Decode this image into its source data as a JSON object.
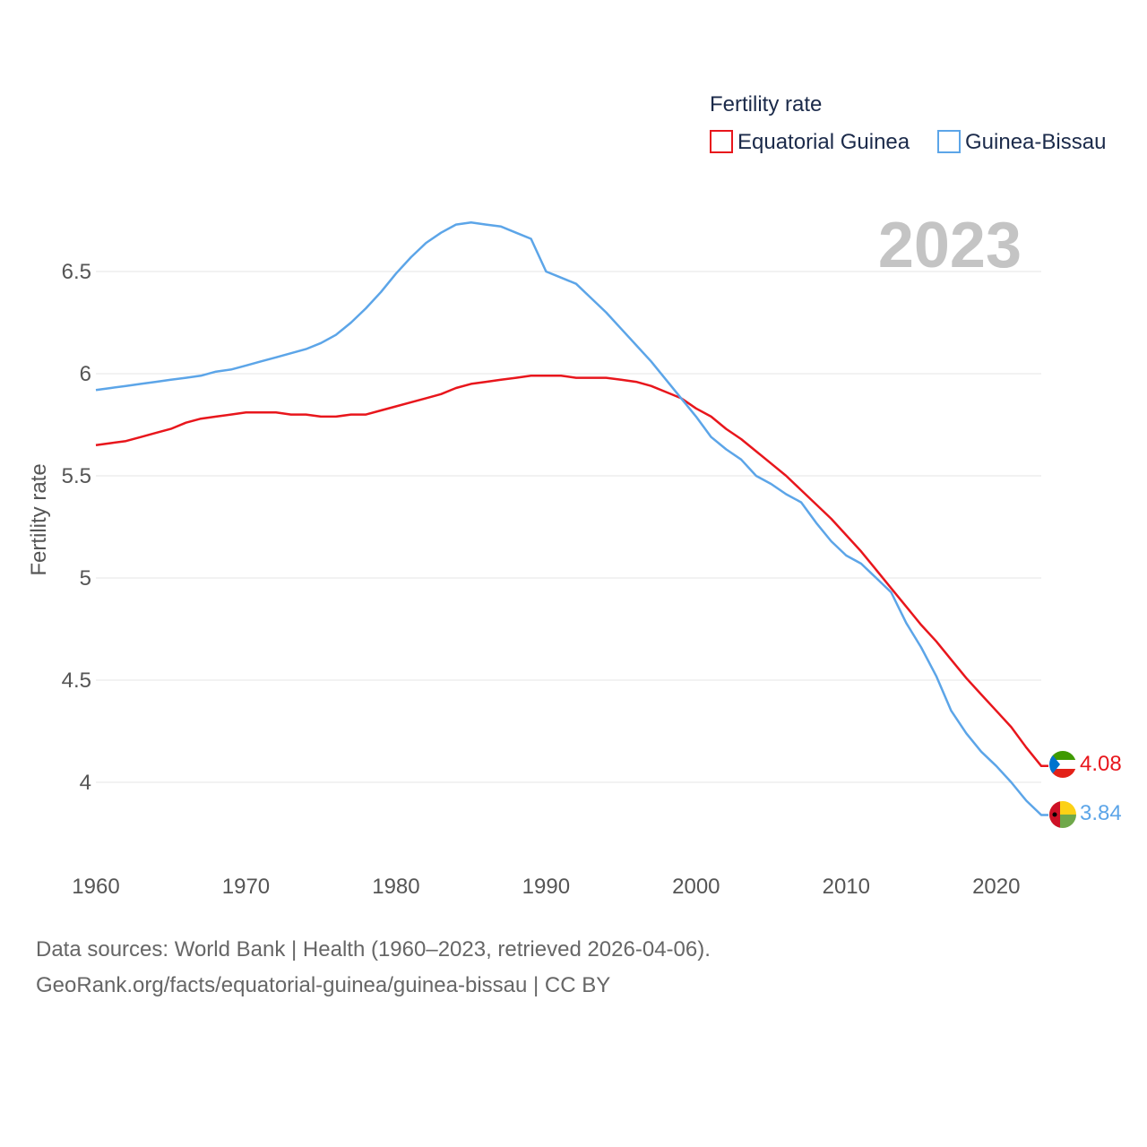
{
  "chart_data": {
    "type": "line",
    "legend_title": "Fertility rate",
    "ylabel": "Fertility rate",
    "year_label": "2023",
    "x_ticks": [
      "1960",
      "1970",
      "1980",
      "1990",
      "2000",
      "2010",
      "2020"
    ],
    "y_ticks": [
      "4",
      "4.5",
      "5",
      "5.5",
      "6",
      "6.5"
    ],
    "xlim": [
      1960,
      2023
    ],
    "ylim": [
      3.6,
      6.8
    ],
    "years": [
      1960,
      1961,
      1962,
      1963,
      1964,
      1965,
      1966,
      1967,
      1968,
      1969,
      1970,
      1971,
      1972,
      1973,
      1974,
      1975,
      1976,
      1977,
      1978,
      1979,
      1980,
      1981,
      1982,
      1983,
      1984,
      1985,
      1986,
      1987,
      1988,
      1989,
      1990,
      1991,
      1992,
      1993,
      1994,
      1995,
      1996,
      1997,
      1998,
      1999,
      2000,
      2001,
      2002,
      2003,
      2004,
      2005,
      2006,
      2007,
      2008,
      2009,
      2010,
      2011,
      2012,
      2013,
      2014,
      2015,
      2016,
      2017,
      2018,
      2019,
      2020,
      2021,
      2022,
      2023
    ],
    "series": [
      {
        "name": "Equatorial Guinea",
        "color": "#e8161c",
        "end_label": "4.08",
        "values": [
          5.65,
          5.66,
          5.67,
          5.69,
          5.71,
          5.73,
          5.76,
          5.78,
          5.79,
          5.8,
          5.81,
          5.81,
          5.81,
          5.8,
          5.8,
          5.79,
          5.79,
          5.8,
          5.8,
          5.82,
          5.84,
          5.86,
          5.88,
          5.9,
          5.93,
          5.95,
          5.96,
          5.97,
          5.98,
          5.99,
          5.99,
          5.99,
          5.98,
          5.98,
          5.98,
          5.97,
          5.96,
          5.94,
          5.91,
          5.88,
          5.83,
          5.79,
          5.73,
          5.68,
          5.62,
          5.56,
          5.5,
          5.43,
          5.36,
          5.29,
          5.21,
          5.13,
          5.04,
          4.95,
          4.86,
          4.77,
          4.69,
          4.6,
          4.51,
          4.43,
          4.35,
          4.27,
          4.17,
          4.08
        ]
      },
      {
        "name": "Guinea-Bissau",
        "color": "#5ca5e8",
        "end_label": "3.84",
        "values": [
          5.92,
          5.93,
          5.94,
          5.95,
          5.96,
          5.97,
          5.98,
          5.99,
          6.01,
          6.02,
          6.04,
          6.06,
          6.08,
          6.1,
          6.12,
          6.15,
          6.19,
          6.25,
          6.32,
          6.4,
          6.49,
          6.57,
          6.64,
          6.69,
          6.73,
          6.74,
          6.73,
          6.72,
          6.69,
          6.66,
          6.5,
          6.47,
          6.44,
          6.37,
          6.3,
          6.22,
          6.14,
          6.06,
          5.97,
          5.88,
          5.79,
          5.69,
          5.63,
          5.58,
          5.5,
          5.46,
          5.41,
          5.37,
          5.27,
          5.18,
          5.11,
          5.07,
          5.0,
          4.93,
          4.78,
          4.66,
          4.52,
          4.35,
          4.24,
          4.15,
          4.08,
          4.0,
          3.91,
          3.84
        ]
      }
    ]
  },
  "footer": {
    "line1": "Data sources: World Bank | Health (1960–2023, retrieved 2026-04-06).",
    "line2": "GeoRank.org/facts/equatorial-guinea/guinea-bissau | CC BY"
  }
}
